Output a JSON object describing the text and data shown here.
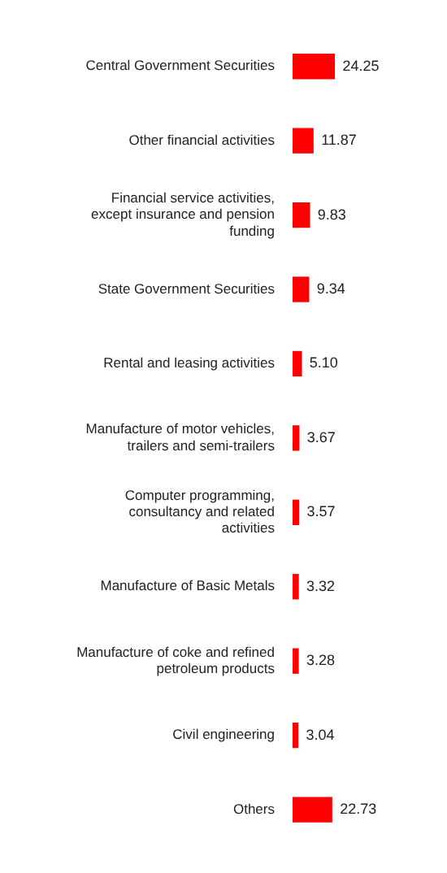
{
  "chart_data": {
    "type": "bar",
    "orientation": "horizontal",
    "data_labels": true,
    "categories": [
      "Central Government Securities",
      "Other financial activities",
      "Financial service activities, except insurance and pension funding",
      "State Government Securities",
      "Rental and leasing activities",
      "Manufacture of motor vehicles, trailers and semi-trailers",
      "Computer programming, consultancy and related activities",
      "Manufacture of Basic Metals",
      "Manufacture of coke and refined petroleum products",
      "Civil engineering",
      "Others"
    ],
    "values": [
      24.25,
      11.87,
      9.83,
      9.34,
      5.1,
      3.67,
      3.57,
      3.32,
      3.28,
      3.04,
      22.73
    ],
    "value_labels": [
      "24.25",
      "11.87",
      "9.83",
      "9.34",
      "5.10",
      "3.67",
      "3.57",
      "3.32",
      "3.28",
      "3.04",
      "22.73"
    ],
    "color": "#ff0000"
  }
}
